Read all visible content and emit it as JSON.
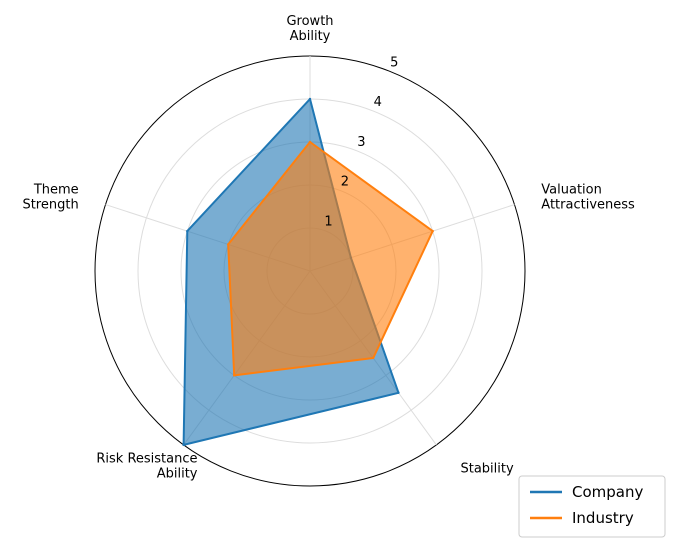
{
  "chart_data": {
    "type": "radar",
    "axes": [
      [
        "Growth",
        "Ability"
      ],
      [
        "Valuation",
        "Attractiveness"
      ],
      [
        "Stability"
      ],
      [
        "Risk Resistance",
        "Ability"
      ],
      [
        "Theme",
        "Strength"
      ]
    ],
    "rmax": 5,
    "rticks": [
      "1",
      "2",
      "3",
      "4",
      "5"
    ],
    "grid": true,
    "legend_position": "lower-right",
    "series": [
      {
        "name": "Company",
        "values": [
          4.0,
          1.0,
          3.5,
          5.0,
          3.0
        ],
        "color": "#1f77b4"
      },
      {
        "name": "Industry",
        "values": [
          3.0,
          3.0,
          2.5,
          3.0,
          2.0
        ],
        "color": "#ff7f0e"
      }
    ]
  }
}
